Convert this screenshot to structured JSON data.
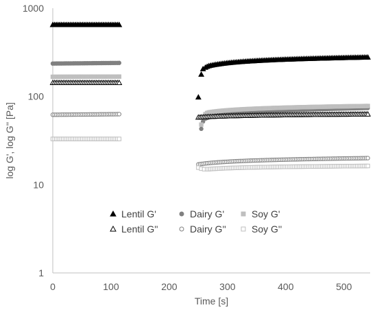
{
  "chart_data": {
    "type": "scatter",
    "title": "",
    "xlabel": "Time [s]",
    "ylabel": "log G', log G'' [Pa]",
    "x_scale": "linear",
    "y_scale": "log",
    "xlim": [
      0,
      545
    ],
    "ylim": [
      1,
      1000
    ],
    "x_ticks": [
      0,
      100,
      200,
      300,
      400,
      500
    ],
    "y_ticks": [
      1,
      10,
      100,
      1000
    ],
    "x_tick_labels": [
      "0",
      "100",
      "200",
      "300",
      "400",
      "500"
    ],
    "y_tick_labels": [
      "1",
      "10",
      "100",
      "1000"
    ],
    "grid": false,
    "legend_position": "lower-middle",
    "series": [
      {
        "name": "Lentil G'",
        "marker": "filled-triangle",
        "color": "#000000",
        "segments": [
          {
            "x_start": 0,
            "x_end": 115,
            "step": 3,
            "y_start": 650,
            "y_end": 650
          },
          {
            "points": [
              [
                250,
                98
              ],
              [
                255,
                178
              ],
              [
                258,
                205
              ],
              [
                262,
                213
              ],
              [
                265,
                218
              ]
            ]
          },
          {
            "x_start": 268,
            "x_end": 540,
            "step": 3,
            "y_start": 222,
            "y_end": 278,
            "curve": "log"
          }
        ]
      },
      {
        "name": "Dairy G'",
        "marker": "filled-circle",
        "color": "#808080",
        "segments": [
          {
            "x_start": 0,
            "x_end": 115,
            "step": 3,
            "y_start": 236,
            "y_end": 240
          },
          {
            "points": [
              [
                255,
                43
              ],
              [
                258,
                52
              ],
              [
                262,
                56
              ],
              [
                265,
                57
              ]
            ]
          },
          {
            "x_start": 268,
            "x_end": 540,
            "step": 3,
            "y_start": 58,
            "y_end": 74,
            "curve": "log"
          }
        ]
      },
      {
        "name": "Soy G'",
        "marker": "filled-square",
        "color": "#bfbfbf",
        "segments": [
          {
            "x_start": 0,
            "x_end": 115,
            "step": 3,
            "y_start": 167,
            "y_end": 168
          },
          {
            "points": [
              [
                255,
                48
              ],
              [
                258,
                58
              ],
              [
                262,
                63
              ],
              [
                265,
                65
              ]
            ]
          },
          {
            "x_start": 268,
            "x_end": 540,
            "step": 3,
            "y_start": 66,
            "y_end": 78,
            "curve": "log"
          }
        ]
      },
      {
        "name": "Lentil G''",
        "marker": "open-triangle",
        "color": "#000000",
        "segments": [
          {
            "x_start": 0,
            "x_end": 115,
            "step": 3,
            "y_start": 143,
            "y_end": 143
          },
          {
            "x_start": 250,
            "x_end": 540,
            "step": 3,
            "y_start": 58,
            "y_end": 63,
            "curve": "log"
          }
        ]
      },
      {
        "name": "Dairy G''",
        "marker": "open-circle",
        "color": "#808080",
        "segments": [
          {
            "x_start": 0,
            "x_end": 115,
            "step": 3,
            "y_start": 62,
            "y_end": 63
          },
          {
            "x_start": 250,
            "x_end": 540,
            "step": 3,
            "y_start": 17,
            "y_end": 20,
            "curve": "log"
          }
        ]
      },
      {
        "name": "Soy G''",
        "marker": "open-square",
        "color": "#bfbfbf",
        "segments": [
          {
            "x_start": 0,
            "x_end": 115,
            "step": 3,
            "y_start": 33,
            "y_end": 33
          },
          {
            "points": [
              [
                250,
                15.6
              ],
              [
                255,
                15.2
              ],
              [
                260,
                15.0
              ],
              [
                265,
                15.0
              ]
            ]
          },
          {
            "x_start": 268,
            "x_end": 540,
            "step": 3,
            "y_start": 15.0,
            "y_end": 16.3,
            "curve": "log"
          }
        ]
      }
    ]
  },
  "colors": {
    "axis": "#bfbfbf",
    "text": "#595959"
  }
}
